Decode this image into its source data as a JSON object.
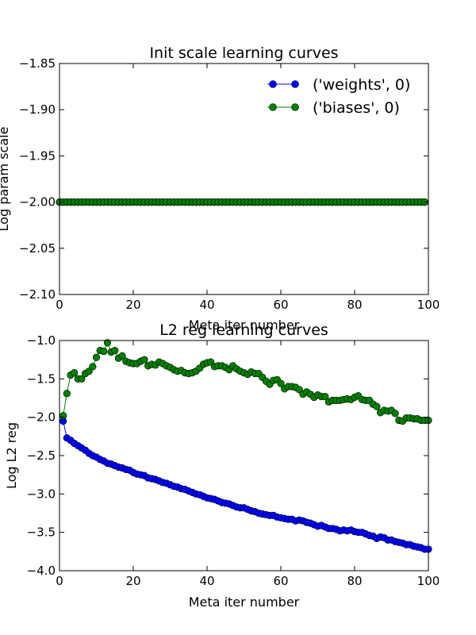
{
  "chart_data": [
    {
      "type": "line",
      "title": "Init scale learning curves",
      "xlabel": "Meta iter number",
      "ylabel": "Log param scale",
      "xlim": [
        0,
        100
      ],
      "ylim": [
        -2.1,
        -1.85
      ],
      "xticks": [
        0,
        20,
        40,
        60,
        80,
        100
      ],
      "xtick_labels": [
        "0",
        "20",
        "40",
        "60",
        "80",
        "100"
      ],
      "yticks": [
        -1.85,
        -1.9,
        -1.95,
        -2.0,
        -2.05,
        -2.1
      ],
      "ytick_labels": [
        "−1.85",
        "−1.90",
        "−1.95",
        "−2.00",
        "−2.05",
        "−2.10"
      ],
      "grid": false,
      "legend": {
        "position": "top-right",
        "entries": [
          "('weights', 0)",
          "('biases', 0)"
        ]
      },
      "x": [
        0,
        1,
        2,
        3,
        4,
        5,
        6,
        7,
        8,
        9,
        10,
        11,
        12,
        13,
        14,
        15,
        16,
        17,
        18,
        19,
        20,
        21,
        22,
        23,
        24,
        25,
        26,
        27,
        28,
        29,
        30,
        31,
        32,
        33,
        34,
        35,
        36,
        37,
        38,
        39,
        40,
        41,
        42,
        43,
        44,
        45,
        46,
        47,
        48,
        49,
        50,
        51,
        52,
        53,
        54,
        55,
        56,
        57,
        58,
        59,
        60,
        61,
        62,
        63,
        64,
        65,
        66,
        67,
        68,
        69,
        70,
        71,
        72,
        73,
        74,
        75,
        76,
        77,
        78,
        79,
        80,
        81,
        82,
        83,
        84,
        85,
        86,
        87,
        88,
        89,
        90,
        91,
        92,
        93,
        94,
        95,
        96,
        97,
        98,
        99
      ],
      "series": [
        {
          "name": "('weights', 0)",
          "color": "#0000ff",
          "values": [
            -2.0,
            -2.0,
            -2.0,
            -2.0,
            -2.0,
            -2.0,
            -2.0,
            -2.0,
            -2.0,
            -2.0,
            -2.0,
            -2.0,
            -2.0,
            -2.0,
            -2.0,
            -2.0,
            -2.0,
            -2.0,
            -2.0,
            -2.0,
            -2.0,
            -2.0,
            -2.0,
            -2.0,
            -2.0,
            -2.0,
            -2.0,
            -2.0,
            -2.0,
            -2.0,
            -2.0,
            -2.0,
            -2.0,
            -2.0,
            -2.0,
            -2.0,
            -2.0,
            -2.0,
            -2.0,
            -2.0,
            -2.0,
            -2.0,
            -2.0,
            -2.0,
            -2.0,
            -2.0,
            -2.0,
            -2.0,
            -2.0,
            -2.0,
            -2.0,
            -2.0,
            -2.0,
            -2.0,
            -2.0,
            -2.0,
            -2.0,
            -2.0,
            -2.0,
            -2.0,
            -2.0,
            -2.0,
            -2.0,
            -2.0,
            -2.0,
            -2.0,
            -2.0,
            -2.0,
            -2.0,
            -2.0,
            -2.0,
            -2.0,
            -2.0,
            -2.0,
            -2.0,
            -2.0,
            -2.0,
            -2.0,
            -2.0,
            -2.0,
            -2.0,
            -2.0,
            -2.0,
            -2.0,
            -2.0,
            -2.0,
            -2.0,
            -2.0,
            -2.0,
            -2.0,
            -2.0,
            -2.0,
            -2.0,
            -2.0,
            -2.0,
            -2.0,
            -2.0,
            -2.0,
            -2.0,
            -2.0
          ]
        },
        {
          "name": "('biases', 0)",
          "color": "#008000",
          "values": [
            -2.0,
            -2.0,
            -2.0,
            -2.0,
            -2.0,
            -2.0,
            -2.0,
            -2.0,
            -2.0,
            -2.0,
            -2.0,
            -2.0,
            -2.0,
            -2.0,
            -2.0,
            -2.0,
            -2.0,
            -2.0,
            -2.0,
            -2.0,
            -2.0,
            -2.0,
            -2.0,
            -2.0,
            -2.0,
            -2.0,
            -2.0,
            -2.0,
            -2.0,
            -2.0,
            -2.0,
            -2.0,
            -2.0,
            -2.0,
            -2.0,
            -2.0,
            -2.0,
            -2.0,
            -2.0,
            -2.0,
            -2.0,
            -2.0,
            -2.0,
            -2.0,
            -2.0,
            -2.0,
            -2.0,
            -2.0,
            -2.0,
            -2.0,
            -2.0,
            -2.0,
            -2.0,
            -2.0,
            -2.0,
            -2.0,
            -2.0,
            -2.0,
            -2.0,
            -2.0,
            -2.0,
            -2.0,
            -2.0,
            -2.0,
            -2.0,
            -2.0,
            -2.0,
            -2.0,
            -2.0,
            -2.0,
            -2.0,
            -2.0,
            -2.0,
            -2.0,
            -2.0,
            -2.0,
            -2.0,
            -2.0,
            -2.0,
            -2.0,
            -2.0,
            -2.0,
            -2.0,
            -2.0,
            -2.0,
            -2.0,
            -2.0,
            -2.0,
            -2.0,
            -2.0,
            -2.0,
            -2.0,
            -2.0,
            -2.0,
            -2.0,
            -2.0,
            -2.0,
            -2.0,
            -2.0,
            -2.0
          ]
        }
      ]
    },
    {
      "type": "line",
      "title": "L2 reg learning curves",
      "xlabel": "Meta iter number",
      "ylabel": "Log L2 reg",
      "xlim": [
        0,
        100
      ],
      "ylim": [
        -4.0,
        -1.0
      ],
      "xticks": [
        0,
        20,
        40,
        60,
        80,
        100
      ],
      "xtick_labels": [
        "0",
        "20",
        "40",
        "60",
        "80",
        "100"
      ],
      "yticks": [
        -1.0,
        -1.5,
        -2.0,
        -2.5,
        -3.0,
        -3.5,
        -4.0
      ],
      "ytick_labels": [
        "−1.0",
        "−1.5",
        "−2.0",
        "−2.5",
        "−3.0",
        "−3.5",
        "−4.0"
      ],
      "grid": false,
      "x": [
        1,
        2,
        3,
        4,
        5,
        6,
        7,
        8,
        9,
        10,
        11,
        12,
        13,
        14,
        15,
        16,
        17,
        18,
        19,
        20,
        21,
        22,
        23,
        24,
        25,
        26,
        27,
        28,
        29,
        30,
        31,
        32,
        33,
        34,
        35,
        36,
        37,
        38,
        39,
        40,
        41,
        42,
        43,
        44,
        45,
        46,
        47,
        48,
        49,
        50,
        51,
        52,
        53,
        54,
        55,
        56,
        57,
        58,
        59,
        60,
        61,
        62,
        63,
        64,
        65,
        66,
        67,
        68,
        69,
        70,
        71,
        72,
        73,
        74,
        75,
        76,
        77,
        78,
        79,
        80,
        81,
        82,
        83,
        84,
        85,
        86,
        87,
        88,
        89,
        90,
        91,
        92,
        93,
        94,
        95,
        96,
        97,
        98,
        99,
        100
      ],
      "series": [
        {
          "name": "('weights', 0)",
          "color": "#0000ff",
          "values": [
            -2.05,
            -2.27,
            -2.3,
            -2.34,
            -2.37,
            -2.4,
            -2.43,
            -2.47,
            -2.5,
            -2.52,
            -2.55,
            -2.57,
            -2.6,
            -2.61,
            -2.63,
            -2.65,
            -2.66,
            -2.68,
            -2.69,
            -2.72,
            -2.74,
            -2.75,
            -2.76,
            -2.79,
            -2.8,
            -2.81,
            -2.83,
            -2.85,
            -2.86,
            -2.88,
            -2.9,
            -2.91,
            -2.93,
            -2.94,
            -2.96,
            -2.98,
            -3.0,
            -3.01,
            -3.03,
            -3.05,
            -3.06,
            -3.07,
            -3.09,
            -3.11,
            -3.12,
            -3.13,
            -3.15,
            -3.17,
            -3.18,
            -3.18,
            -3.2,
            -3.22,
            -3.23,
            -3.25,
            -3.26,
            -3.27,
            -3.28,
            -3.28,
            -3.3,
            -3.31,
            -3.32,
            -3.33,
            -3.33,
            -3.35,
            -3.34,
            -3.35,
            -3.37,
            -3.38,
            -3.4,
            -3.42,
            -3.41,
            -3.43,
            -3.45,
            -3.45,
            -3.46,
            -3.48,
            -3.47,
            -3.48,
            -3.47,
            -3.49,
            -3.5,
            -3.5,
            -3.52,
            -3.54,
            -3.55,
            -3.58,
            -3.56,
            -3.57,
            -3.6,
            -3.6,
            -3.62,
            -3.63,
            -3.64,
            -3.66,
            -3.66,
            -3.68,
            -3.69,
            -3.7,
            -3.72,
            -3.72
          ]
        },
        {
          "name": "('biases', 0)",
          "color": "#008000",
          "values": [
            -1.98,
            -1.69,
            -1.45,
            -1.42,
            -1.5,
            -1.5,
            -1.43,
            -1.4,
            -1.34,
            -1.22,
            -1.13,
            -1.14,
            -1.03,
            -1.15,
            -1.13,
            -1.23,
            -1.2,
            -1.27,
            -1.29,
            -1.3,
            -1.3,
            -1.27,
            -1.25,
            -1.33,
            -1.31,
            -1.32,
            -1.28,
            -1.3,
            -1.33,
            -1.35,
            -1.38,
            -1.4,
            -1.39,
            -1.42,
            -1.43,
            -1.42,
            -1.4,
            -1.36,
            -1.31,
            -1.29,
            -1.28,
            -1.34,
            -1.33,
            -1.33,
            -1.35,
            -1.38,
            -1.33,
            -1.37,
            -1.4,
            -1.42,
            -1.44,
            -1.41,
            -1.43,
            -1.43,
            -1.48,
            -1.53,
            -1.57,
            -1.52,
            -1.51,
            -1.56,
            -1.63,
            -1.6,
            -1.6,
            -1.61,
            -1.64,
            -1.7,
            -1.67,
            -1.7,
            -1.74,
            -1.71,
            -1.73,
            -1.73,
            -1.8,
            -1.78,
            -1.78,
            -1.78,
            -1.77,
            -1.76,
            -1.77,
            -1.74,
            -1.72,
            -1.77,
            -1.78,
            -1.78,
            -1.83,
            -1.86,
            -1.94,
            -1.91,
            -1.92,
            -1.91,
            -1.95,
            -2.04,
            -2.05,
            -2.01,
            -2.01,
            -2.02,
            -2.02,
            -2.04,
            -2.04,
            -2.04
          ]
        }
      ]
    }
  ]
}
